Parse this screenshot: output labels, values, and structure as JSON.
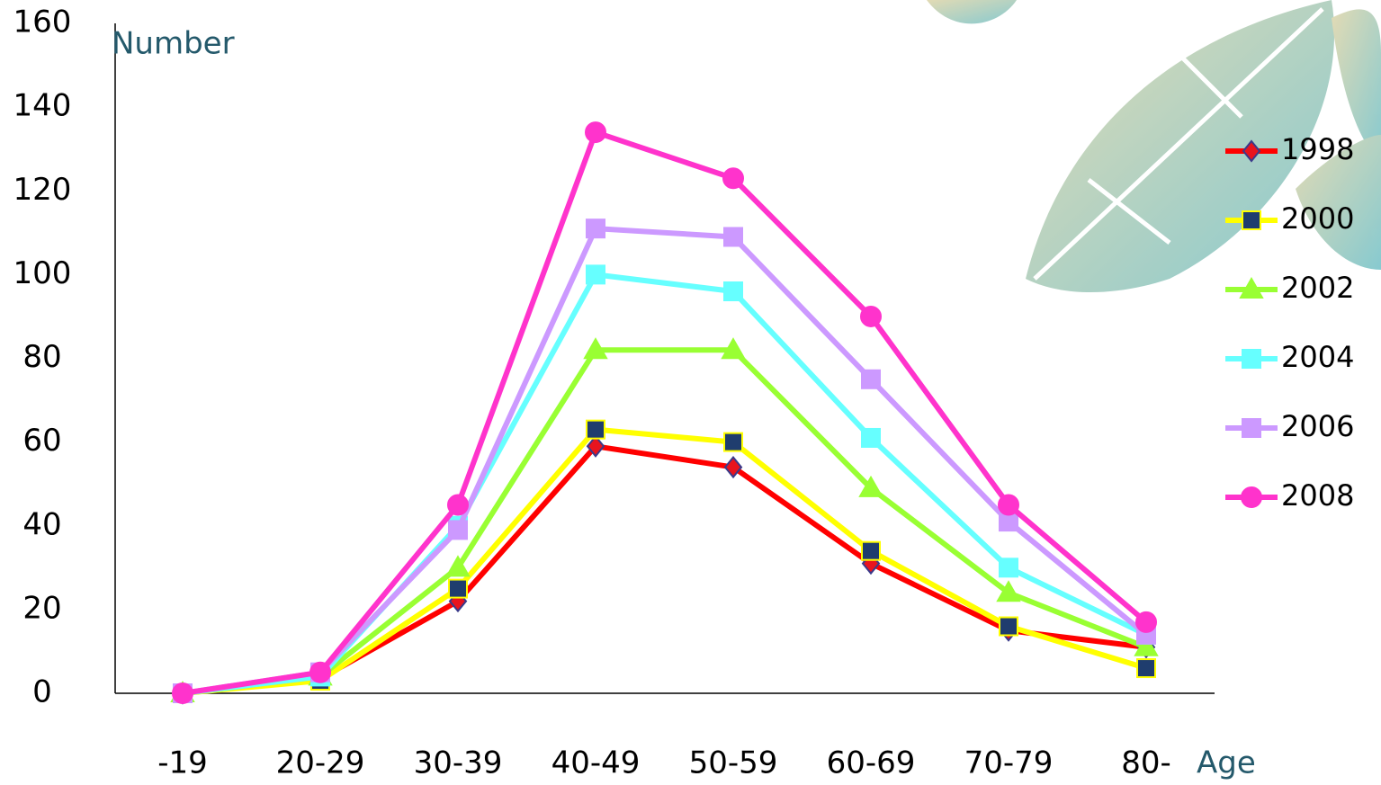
{
  "chart_data": {
    "type": "line",
    "y_label": "Number",
    "x_label": "Age",
    "categories": [
      "-19",
      "20-29",
      "30-39",
      "40-49",
      "50-59",
      "60-69",
      "70-79",
      "80-"
    ],
    "ylim": [
      0,
      160
    ],
    "yticks": [
      0,
      20,
      40,
      60,
      80,
      100,
      120,
      140,
      160
    ],
    "grid": false,
    "legend": "right",
    "series": [
      {
        "name": "1998",
        "color": "#ff0000",
        "marker": "diamond",
        "marker_color": "#e8141e",
        "values": [
          0,
          3.5,
          22,
          59,
          54,
          31,
          15,
          11
        ]
      },
      {
        "name": "2000",
        "color": "#ffff00",
        "marker": "square",
        "marker_color": "#1f3d6e",
        "values": [
          0,
          3,
          25,
          63,
          60,
          34,
          16,
          6
        ]
      },
      {
        "name": "2002",
        "color": "#99ff33",
        "marker": "triangle",
        "marker_color": "#99ff33",
        "values": [
          0,
          4,
          30,
          82,
          82,
          49,
          24,
          11
        ]
      },
      {
        "name": "2004",
        "color": "#66ffff",
        "marker": "square",
        "marker_color": "#66ffff",
        "values": [
          0,
          4,
          40,
          100,
          96,
          61,
          30,
          14
        ]
      },
      {
        "name": "2006",
        "color": "#cc99ff",
        "marker": "square",
        "marker_color": "#cc99ff",
        "values": [
          0,
          5,
          39,
          111,
          109,
          75,
          41,
          14
        ]
      },
      {
        "name": "2008",
        "color": "#ff33cc",
        "marker": "circle",
        "marker_color": "#ff33cc",
        "values": [
          0,
          5,
          45,
          134,
          123,
          90,
          45,
          17
        ]
      }
    ]
  }
}
